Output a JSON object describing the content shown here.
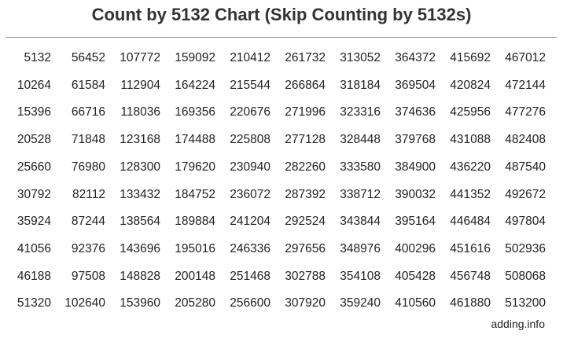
{
  "title": "Count by 5132 Chart (Skip Counting by 5132s)",
  "table": {
    "rows": [
      [
        "5132",
        "56452",
        "107772",
        "159092",
        "210412",
        "261732",
        "313052",
        "364372",
        "415692",
        "467012"
      ],
      [
        "10264",
        "61584",
        "112904",
        "164224",
        "215544",
        "266864",
        "318184",
        "369504",
        "420824",
        "472144"
      ],
      [
        "15396",
        "66716",
        "118036",
        "169356",
        "220676",
        "271996",
        "323316",
        "374636",
        "425956",
        "477276"
      ],
      [
        "20528",
        "71848",
        "123168",
        "174488",
        "225808",
        "277128",
        "328448",
        "379768",
        "431088",
        "482408"
      ],
      [
        "25660",
        "76980",
        "128300",
        "179620",
        "230940",
        "282260",
        "333580",
        "384900",
        "436220",
        "487540"
      ],
      [
        "30792",
        "82112",
        "133432",
        "184752",
        "236072",
        "287392",
        "338712",
        "390032",
        "441352",
        "492672"
      ],
      [
        "35924",
        "87244",
        "138564",
        "189884",
        "241204",
        "292524",
        "343844",
        "395164",
        "446484",
        "497804"
      ],
      [
        "41056",
        "92376",
        "143696",
        "195016",
        "246336",
        "297656",
        "348976",
        "400296",
        "451616",
        "502936"
      ],
      [
        "46188",
        "97508",
        "148828",
        "200148",
        "251468",
        "302788",
        "354108",
        "405428",
        "456748",
        "508068"
      ],
      [
        "51320",
        "102640",
        "153960",
        "205280",
        "256600",
        "307920",
        "359240",
        "410560",
        "461880",
        "513200"
      ]
    ]
  },
  "footer": "adding.info"
}
